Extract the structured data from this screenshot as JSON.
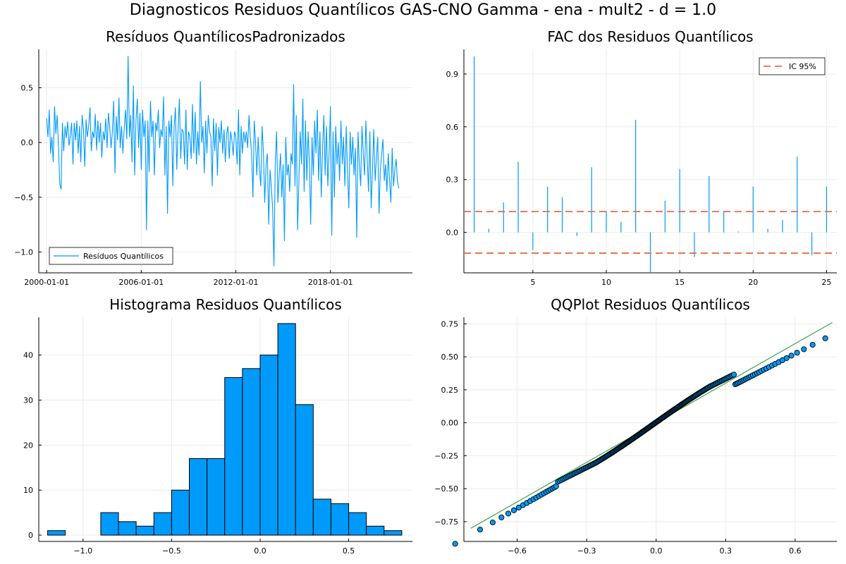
{
  "suptitle": "Diagnosticos Residuos  Quantílicos GAS-CNO Gamma - ena - mult2 - d = 1.0",
  "colors": {
    "series": "#009AFA",
    "ci": "#E26F46",
    "qqline": "#3DA44D",
    "grid": "#EBEBEB"
  },
  "chart_data": [
    {
      "type": "line",
      "title": "Resíduos  QuantílicosPadronizados",
      "xlabel": "",
      "ylabel": "",
      "x_ticks": [
        "2000-01-01",
        "2006-01-01",
        "2012-01-01",
        "2018-01-01"
      ],
      "x_tick_years": [
        2000,
        2006,
        2012,
        2018
      ],
      "xlim": [
        1999.5,
        2023.2
      ],
      "y_ticks": [
        "0.5",
        "0.0",
        "−0.5",
        "−1.0"
      ],
      "y_tick_values": [
        0.5,
        0.0,
        -0.5,
        -1.0
      ],
      "ylim": [
        -1.19,
        0.85
      ],
      "x_start": 2000.0,
      "x_step": 0.08333,
      "legend": {
        "position": "bottom-left",
        "entries": [
          "Resíduos Quantílicos"
        ]
      },
      "series": [
        {
          "name": "Resíduos Quantílicos",
          "values": [
            0.22,
            0.05,
            0.3,
            -0.1,
            0.05,
            -0.18,
            0.33,
            0.08,
            0.25,
            -0.05,
            -0.38,
            -0.43,
            0.18,
            -0.08,
            0.15,
            0.04,
            0.19,
            -0.03,
            0.06,
            0.18,
            -0.2,
            0.18,
            0.02,
            0.2,
            -0.1,
            0.15,
            -0.18,
            0.25,
            0.12,
            -0.22,
            0.21,
            0.05,
            0.15,
            0.32,
            -0.08,
            0.1,
            0.04,
            0.26,
            -0.07,
            0.2,
            0.0,
            0.18,
            -0.14,
            0.1,
            0.02,
            0.22,
            -0.05,
            0.27,
            0.14,
            -0.05,
            0.1,
            0.38,
            -0.28,
            0.24,
            0.02,
            0.41,
            -0.05,
            0.15,
            -0.1,
            0.12,
            0.3,
            0.03,
            0.79,
            0.05,
            0.25,
            -0.18,
            0.52,
            -0.3,
            0.2,
            0.4,
            -0.05,
            0.27,
            -0.25,
            0.3,
            0.05,
            0.2,
            -0.8,
            0.2,
            -0.27,
            0.38,
            0.05,
            0.2,
            -0.3,
            0.18,
            0.1,
            0.3,
            -0.05,
            0.12,
            0.05,
            0.42,
            -0.3,
            0.15,
            -0.65,
            0.2,
            0.05,
            0.25,
            -0.4,
            0.13,
            0.32,
            -0.25,
            0.1,
            0.4,
            -0.15,
            0.12,
            0.1,
            -0.2,
            0.3,
            -0.25,
            0.1,
            0.05,
            -0.15,
            0.35,
            -0.1,
            0.28,
            -0.2,
            0.1,
            -0.12,
            0.56,
            0.0,
            0.15,
            -0.28,
            0.2,
            -0.1,
            0.25,
            0.1,
            0.05,
            -0.4,
            0.22,
            -0.08,
            0.18,
            -0.3,
            0.14,
            0.0,
            0.2,
            -0.1,
            0.12,
            -0.18,
            0.08,
            0.15,
            -0.15,
            0.1,
            0.02,
            -0.12,
            0.1,
            0.05,
            -0.2,
            0.3,
            -0.3,
            0.15,
            -0.1,
            0.1,
            0.0,
            0.1,
            -0.05,
            0.25,
            0.05,
            -0.1,
            -0.5,
            0.2,
            0.0,
            -0.3,
            0.05,
            -0.25,
            -0.4,
            0.15,
            -0.1,
            -0.55,
            -0.2,
            -0.1,
            -0.75,
            -0.25,
            -0.4,
            -0.6,
            -1.13,
            -0.2,
            0.1,
            -0.55,
            -0.3,
            -0.1,
            -0.5,
            -0.2,
            -0.9,
            0.05,
            -0.3,
            -0.2,
            -0.45,
            -0.1,
            -0.2,
            0.53,
            -0.4,
            0.25,
            -0.8,
            -0.35,
            0.1,
            -0.2,
            0.4,
            -0.45,
            0.2,
            -0.35,
            0.1,
            -0.2,
            -0.75,
            0.05,
            -0.3,
            0.2,
            -0.1,
            0.3,
            -0.35,
            0.1,
            -0.5,
            -0.05,
            0.25,
            -0.3,
            0.15,
            -0.4,
            -0.1,
            0.33,
            -0.85,
            0.1,
            -0.5,
            0.15,
            -0.2,
            0.0,
            -0.35,
            0.2,
            -0.2,
            0.05,
            -0.4,
            0.15,
            -0.25,
            -0.6,
            0.1,
            -0.2,
            0.05,
            -0.3,
            -0.05,
            -0.87,
            0.1,
            -0.2,
            -0.4,
            0.15,
            -0.1,
            -0.3,
            0.2,
            -0.15,
            -0.45,
            0.1,
            -0.6,
            -0.25,
            0.12,
            -0.35,
            -0.15,
            0.05,
            -0.65,
            -0.25,
            -0.1,
            0.03,
            -0.35,
            -0.2,
            -0.45,
            -0.1,
            -0.35,
            -0.55,
            -0.05,
            -0.4,
            -0.25,
            -0.15,
            -0.35,
            -0.42
          ]
        }
      ]
    },
    {
      "type": "bar",
      "title": "FAC dos Residuos Quantílicos",
      "xlabel": "",
      "ylabel": "",
      "x_ticks": [
        "5",
        "10",
        "15",
        "20",
        "25"
      ],
      "x_tick_values": [
        5,
        10,
        15,
        20,
        25
      ],
      "xlim": [
        0.3,
        25.7
      ],
      "y_ticks": [
        "0.9",
        "0.6",
        "0.3",
        "0.0"
      ],
      "y_tick_values": [
        0.9,
        0.6,
        0.3,
        0.0
      ],
      "ylim": [
        -0.23,
        1.04
      ],
      "lags": [
        1,
        2,
        3,
        4,
        5,
        6,
        7,
        8,
        9,
        10,
        11,
        12,
        13,
        14,
        15,
        16,
        17,
        18,
        19,
        20,
        21,
        22,
        23,
        24,
        25
      ],
      "values": [
        1.0,
        0.02,
        0.17,
        0.4,
        -0.1,
        0.26,
        0.2,
        -0.02,
        0.37,
        0.12,
        0.06,
        0.64,
        -0.23,
        0.18,
        0.36,
        -0.14,
        0.32,
        0.12,
        0.005,
        0.26,
        0.02,
        0.07,
        0.43,
        -0.13,
        0.26
      ],
      "ci": [
        0.118,
        -0.118
      ],
      "legend": {
        "position": "top-right",
        "entries": [
          "IC 95%"
        ]
      }
    },
    {
      "type": "bar",
      "title": "Histograma Residuos Quantílicos",
      "xlabel": "",
      "ylabel": "",
      "x_ticks": [
        "−1.0",
        "−0.5",
        "0.0",
        "0.5"
      ],
      "x_tick_values": [
        -1.0,
        -0.5,
        0.0,
        0.5
      ],
      "xlim": [
        -1.25,
        0.86
      ],
      "y_ticks": [
        "40",
        "30",
        "20",
        "10",
        "0"
      ],
      "y_tick_values": [
        40,
        30,
        20,
        10,
        0
      ],
      "ylim": [
        -1.4,
        48.4
      ],
      "bin_edges": [
        -1.2,
        -1.1,
        -1.0,
        -0.9,
        -0.8,
        -0.7,
        -0.6,
        -0.5,
        -0.4,
        -0.3,
        -0.2,
        -0.1,
        0.0,
        0.1,
        0.2,
        0.3,
        0.4,
        0.5,
        0.6,
        0.7,
        0.8
      ],
      "counts": [
        1,
        0,
        0,
        5,
        3,
        2,
        5,
        10,
        17,
        17,
        35,
        37,
        40,
        47,
        29,
        8,
        7,
        5,
        2,
        1
      ]
    },
    {
      "type": "scatter",
      "title": "QQPlot Residuos Quantílicos",
      "xlabel": "",
      "ylabel": "",
      "x_ticks": [
        "−0.6",
        "−0.3",
        "0.0",
        "0.3",
        "0.6"
      ],
      "x_tick_values": [
        -0.6,
        -0.3,
        0.0,
        0.3,
        0.6
      ],
      "xlim": [
        -0.83,
        0.78
      ],
      "y_ticks": [
        "0.75",
        "0.50",
        "0.25",
        "0.00",
        "−0.25",
        "−0.50",
        "−0.75"
      ],
      "y_tick_values": [
        0.75,
        0.5,
        0.25,
        0.0,
        -0.25,
        -0.5,
        -0.75
      ],
      "ylim": [
        -0.9,
        0.8
      ],
      "reference_line": {
        "x": [
          -0.8,
          0.76
        ],
        "y": [
          -0.8,
          0.76
        ]
      },
      "n_points": 260
    }
  ]
}
